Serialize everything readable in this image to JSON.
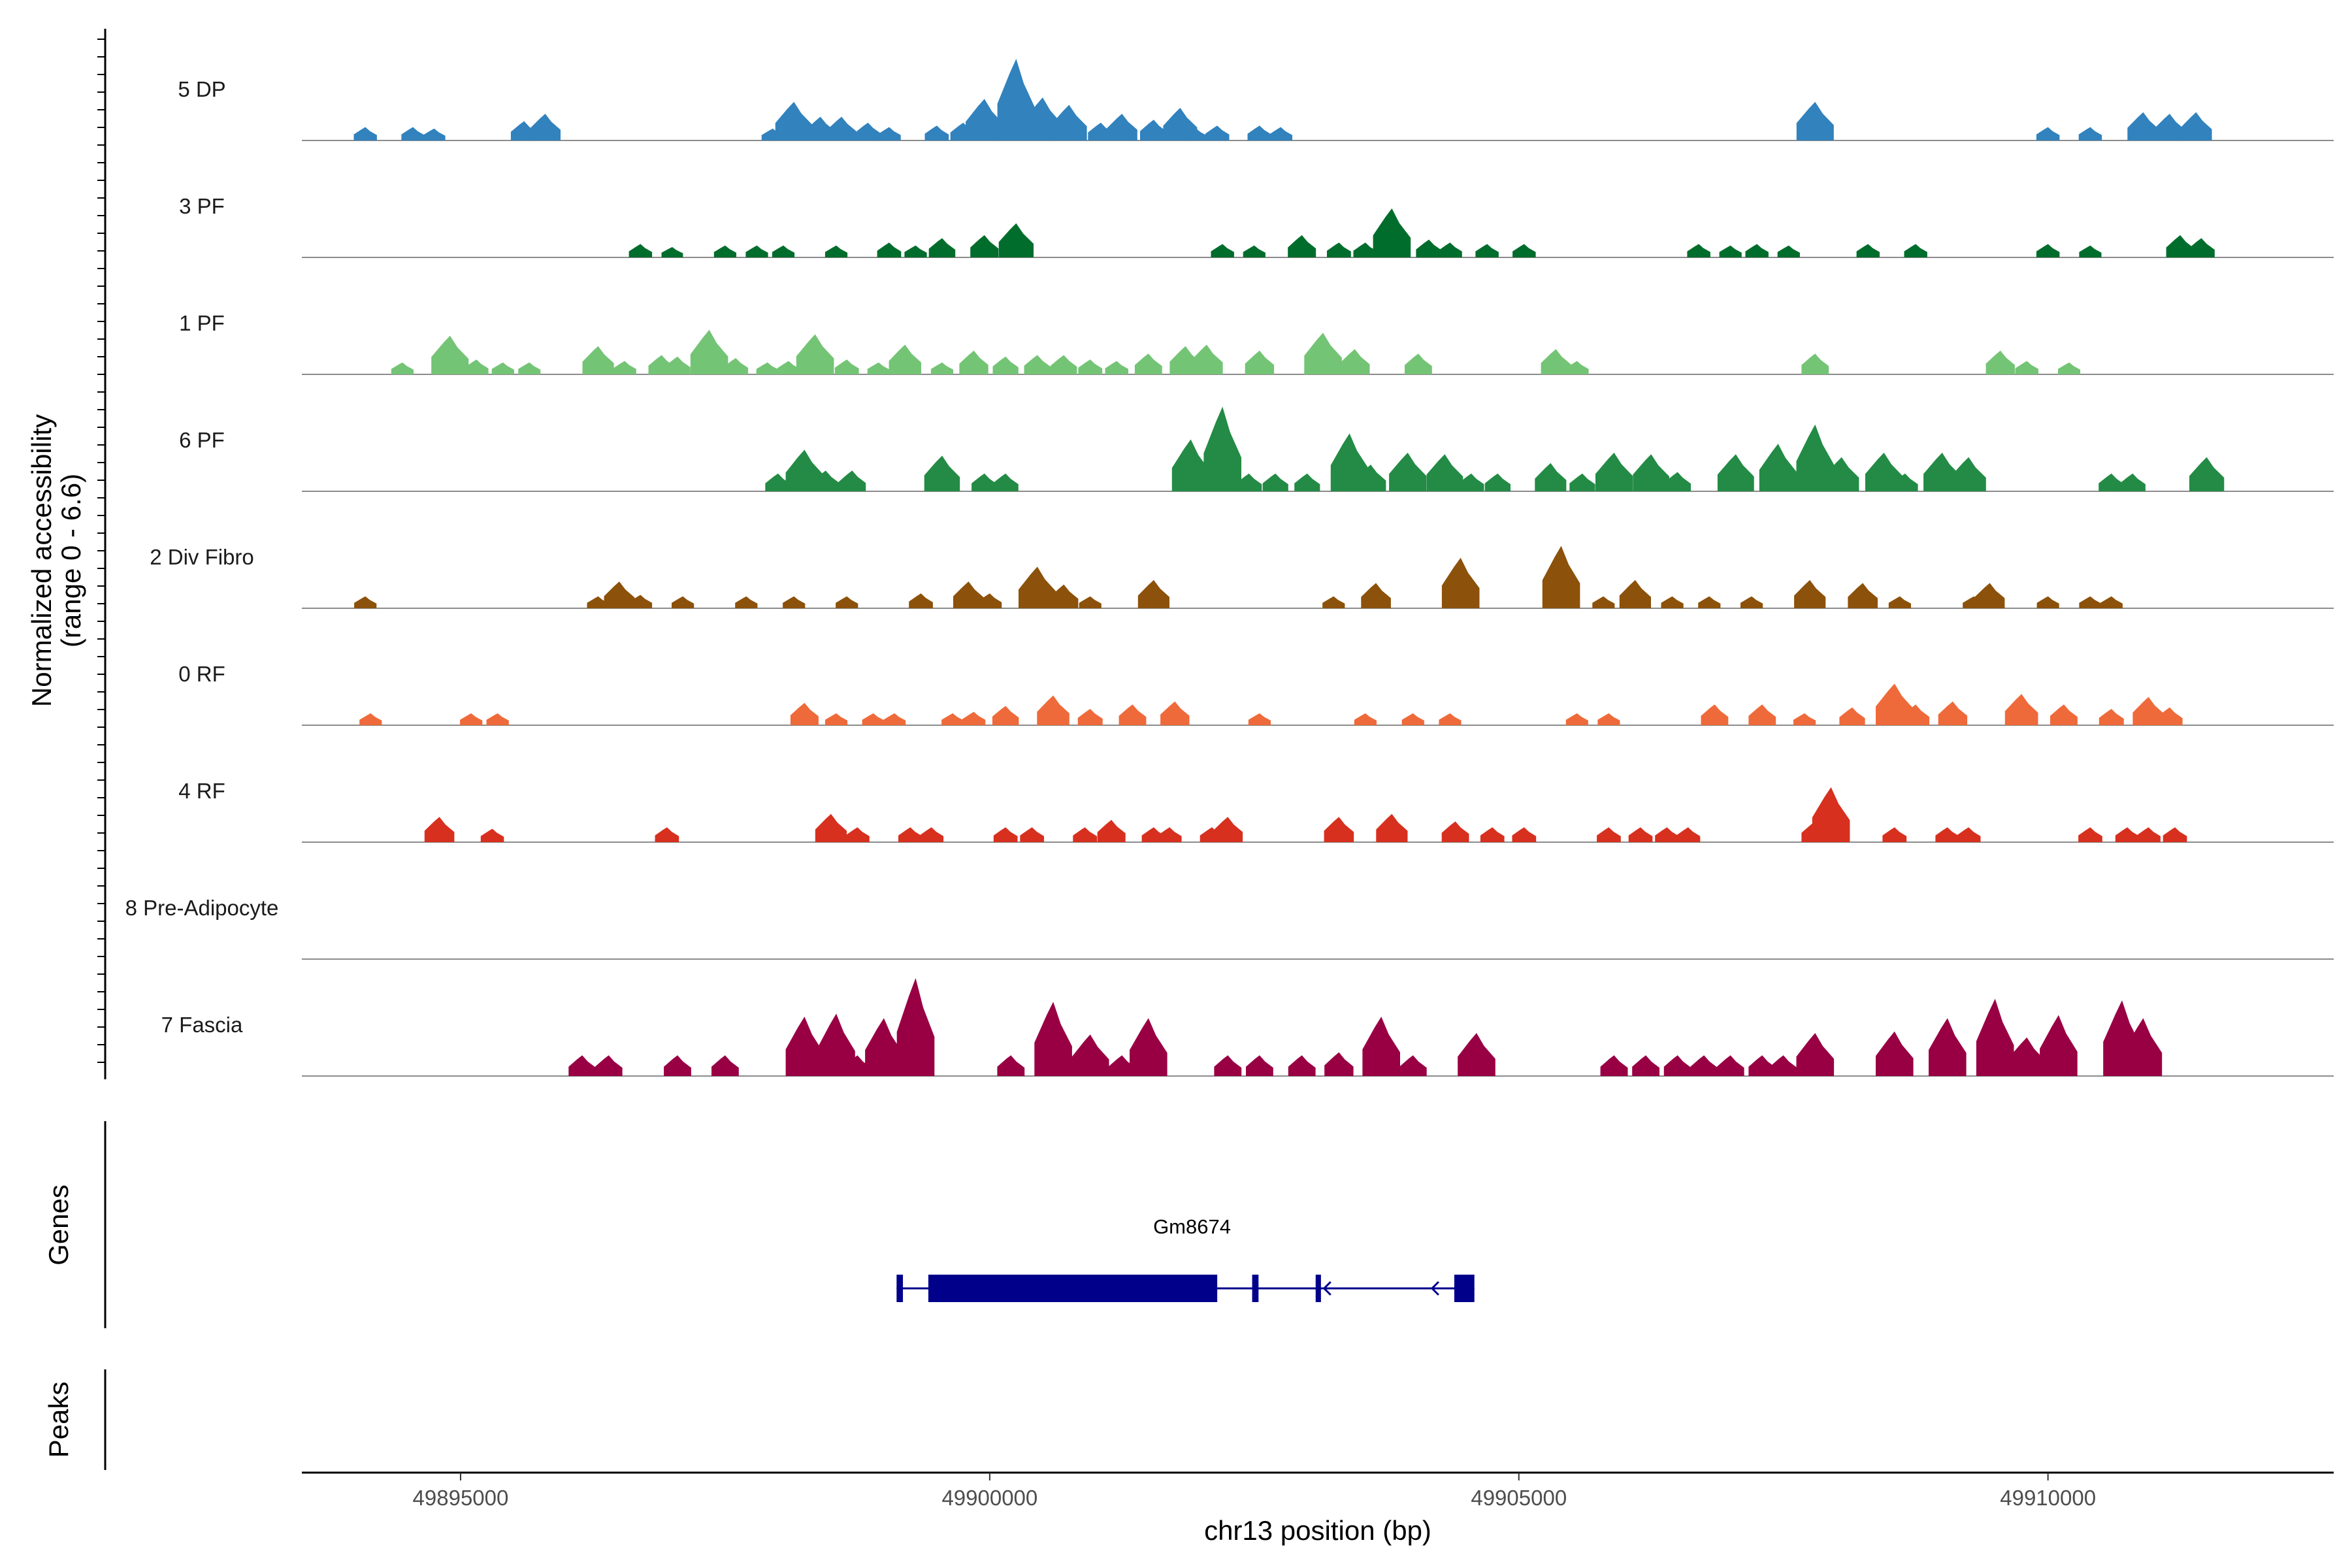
{
  "chart_data": {
    "type": "area",
    "y_axis_title_line1": "Normalized accessibility",
    "y_axis_title_line2": "(range 0 - 6.6)",
    "y_range": [
      0,
      6.6
    ],
    "x_axis_title": "chr13 position (bp)",
    "x_range": [
      49893500,
      49912700
    ],
    "x_ticks": [
      {
        "value": 49895000,
        "label": "49895000"
      },
      {
        "value": 49900000,
        "label": "49900000"
      },
      {
        "value": 49905000,
        "label": "49905000"
      },
      {
        "value": 49910000,
        "label": "49910000"
      }
    ],
    "genes_panel_title": "Genes",
    "peaks_panel_title": "Peaks",
    "genes": [
      {
        "name": "Gm8674",
        "strand": "-",
        "start": 49899120,
        "end": 49904580,
        "color": "#00008b",
        "exons": [
          [
            49899120,
            49899180
          ],
          [
            49899420,
            49902150
          ],
          [
            49902480,
            49902540
          ],
          [
            49903080,
            49903130
          ],
          [
            49904390,
            49904580
          ]
        ]
      }
    ],
    "peaks": [],
    "tracks": [
      {
        "name": "5 DP",
        "color": "#3182bd",
        "peaks": [
          [
            49894100,
            0.9
          ],
          [
            49894550,
            0.9
          ],
          [
            49894750,
            0.8
          ],
          [
            49895600,
            1.3
          ],
          [
            49895800,
            1.8
          ],
          [
            49897950,
            0.8
          ],
          [
            49898150,
            2.6
          ],
          [
            49898400,
            1.6
          ],
          [
            49898600,
            1.6
          ],
          [
            49898850,
            1.2
          ],
          [
            49899050,
            0.9
          ],
          [
            49899500,
            1.0
          ],
          [
            49899750,
            1.2
          ],
          [
            49899950,
            2.8
          ],
          [
            49900250,
            5.5
          ],
          [
            49900500,
            2.9
          ],
          [
            49900750,
            2.4
          ],
          [
            49901050,
            1.2
          ],
          [
            49901250,
            1.8
          ],
          [
            49901550,
            1.4
          ],
          [
            49901800,
            2.2
          ],
          [
            49901950,
            0.8
          ],
          [
            49902150,
            1.0
          ],
          [
            49902550,
            1.0
          ],
          [
            49902750,
            0.9
          ],
          [
            49907800,
            2.6
          ],
          [
            49910000,
            0.9
          ],
          [
            49910400,
            0.9
          ],
          [
            49910900,
            1.9
          ],
          [
            49911150,
            1.8
          ],
          [
            49911400,
            1.9
          ]
        ]
      },
      {
        "name": "3 PF",
        "color": "#006d2c",
        "peaks": [
          [
            49896700,
            0.9
          ],
          [
            49897000,
            0.7
          ],
          [
            49897500,
            0.8
          ],
          [
            49897800,
            0.8
          ],
          [
            49898050,
            0.8
          ],
          [
            49898550,
            0.8
          ],
          [
            49899050,
            1.0
          ],
          [
            49899300,
            0.8
          ],
          [
            49899550,
            1.3
          ],
          [
            49899950,
            1.5
          ],
          [
            49900250,
            2.3
          ],
          [
            49902200,
            0.9
          ],
          [
            49902500,
            0.8
          ],
          [
            49902950,
            1.5
          ],
          [
            49903300,
            1.0
          ],
          [
            49903550,
            1.0
          ],
          [
            49903800,
            3.3
          ],
          [
            49904150,
            1.2
          ],
          [
            49904350,
            1.0
          ],
          [
            49904700,
            0.9
          ],
          [
            49905050,
            0.9
          ],
          [
            49906700,
            0.9
          ],
          [
            49907000,
            0.8
          ],
          [
            49907250,
            0.9
          ],
          [
            49907550,
            0.8
          ],
          [
            49908300,
            0.9
          ],
          [
            49908750,
            0.9
          ],
          [
            49910000,
            0.9
          ],
          [
            49910400,
            0.8
          ],
          [
            49911250,
            1.5
          ],
          [
            49911450,
            1.3
          ]
        ]
      },
      {
        "name": "1 PF",
        "color": "#74c476",
        "peaks": [
          [
            49894450,
            0.8
          ],
          [
            49894900,
            2.6
          ],
          [
            49895150,
            1.0
          ],
          [
            49895400,
            0.8
          ],
          [
            49895650,
            0.8
          ],
          [
            49896300,
            1.9
          ],
          [
            49896550,
            0.9
          ],
          [
            49896900,
            1.3
          ],
          [
            49897050,
            1.2
          ],
          [
            49897350,
            3.0
          ],
          [
            49897600,
            1.1
          ],
          [
            49897900,
            0.8
          ],
          [
            49898100,
            0.9
          ],
          [
            49898350,
            2.7
          ],
          [
            49898650,
            1.0
          ],
          [
            49898950,
            0.8
          ],
          [
            49899200,
            2.0
          ],
          [
            49899550,
            0.8
          ],
          [
            49899850,
            1.6
          ],
          [
            49900150,
            1.2
          ],
          [
            49900450,
            1.3
          ],
          [
            49900700,
            1.3
          ],
          [
            49900950,
            1.0
          ],
          [
            49901200,
            0.9
          ],
          [
            49901500,
            1.4
          ],
          [
            49901850,
            1.9
          ],
          [
            49902050,
            2.0
          ],
          [
            49902550,
            1.6
          ],
          [
            49903150,
            2.8
          ],
          [
            49903450,
            1.7
          ],
          [
            49904050,
            1.4
          ],
          [
            49905350,
            1.7
          ],
          [
            49905550,
            0.9
          ],
          [
            49907800,
            1.4
          ],
          [
            49909550,
            1.6
          ],
          [
            49909800,
            0.9
          ],
          [
            49910200,
            0.8
          ]
        ]
      },
      {
        "name": "6 PF",
        "color": "#238b45",
        "peaks": [
          [
            49898000,
            1.2
          ],
          [
            49898250,
            2.8
          ],
          [
            49898450,
            1.4
          ],
          [
            49898700,
            1.4
          ],
          [
            49899550,
            2.4
          ],
          [
            49899950,
            1.2
          ],
          [
            49900150,
            1.2
          ],
          [
            49901900,
            3.5
          ],
          [
            49902200,
            5.7
          ],
          [
            49902450,
            1.2
          ],
          [
            49902700,
            1.2
          ],
          [
            49903000,
            1.2
          ],
          [
            49903400,
            3.9
          ],
          [
            49903600,
            1.8
          ],
          [
            49903950,
            2.6
          ],
          [
            49904300,
            2.5
          ],
          [
            49904550,
            1.2
          ],
          [
            49904800,
            1.2
          ],
          [
            49905300,
            1.9
          ],
          [
            49905600,
            1.2
          ],
          [
            49905900,
            2.6
          ],
          [
            49906250,
            2.5
          ],
          [
            49906500,
            1.3
          ],
          [
            49907050,
            2.5
          ],
          [
            49907450,
            3.2
          ],
          [
            49907800,
            4.5
          ],
          [
            49908050,
            2.3
          ],
          [
            49908450,
            2.6
          ],
          [
            49908650,
            1.2
          ],
          [
            49909000,
            2.6
          ],
          [
            49909250,
            2.3
          ],
          [
            49910600,
            1.2
          ],
          [
            49910800,
            1.2
          ],
          [
            49911500,
            2.3
          ]
        ]
      },
      {
        "name": "2 Div Fibro",
        "color": "#8c510a",
        "peaks": [
          [
            49894100,
            0.8
          ],
          [
            49896300,
            0.8
          ],
          [
            49896500,
            1.8
          ],
          [
            49896700,
            0.9
          ],
          [
            49897100,
            0.8
          ],
          [
            49897700,
            0.8
          ],
          [
            49898150,
            0.8
          ],
          [
            49898650,
            0.8
          ],
          [
            49899350,
            1.0
          ],
          [
            49899800,
            1.8
          ],
          [
            49900000,
            1.0
          ],
          [
            49900450,
            2.8
          ],
          [
            49900700,
            1.6
          ],
          [
            49900950,
            0.8
          ],
          [
            49901550,
            1.9
          ],
          [
            49903250,
            0.8
          ],
          [
            49903650,
            1.7
          ],
          [
            49904450,
            3.4
          ],
          [
            49905400,
            4.2
          ],
          [
            49905800,
            0.8
          ],
          [
            49906100,
            1.9
          ],
          [
            49906450,
            0.8
          ],
          [
            49906800,
            0.8
          ],
          [
            49907200,
            0.8
          ],
          [
            49907750,
            1.9
          ],
          [
            49908250,
            1.7
          ],
          [
            49908600,
            0.8
          ],
          [
            49909300,
            0.8
          ],
          [
            49909450,
            1.7
          ],
          [
            49910000,
            0.8
          ],
          [
            49910400,
            0.8
          ],
          [
            49910600,
            0.8
          ]
        ]
      },
      {
        "name": "0 RF",
        "color": "#ef6a3a",
        "peaks": [
          [
            49894150,
            0.8
          ],
          [
            49895100,
            0.8
          ],
          [
            49895350,
            0.8
          ],
          [
            49898250,
            1.5
          ],
          [
            49898550,
            0.8
          ],
          [
            49898900,
            0.8
          ],
          [
            49899100,
            0.8
          ],
          [
            49899650,
            0.8
          ],
          [
            49899850,
            0.9
          ],
          [
            49900150,
            1.3
          ],
          [
            49900600,
            2.0
          ],
          [
            49900950,
            1.1
          ],
          [
            49901350,
            1.4
          ],
          [
            49901750,
            1.6
          ],
          [
            49902550,
            0.8
          ],
          [
            49903550,
            0.8
          ],
          [
            49904000,
            0.8
          ],
          [
            49904350,
            0.8
          ],
          [
            49905550,
            0.8
          ],
          [
            49905850,
            0.8
          ],
          [
            49906850,
            1.4
          ],
          [
            49907300,
            1.4
          ],
          [
            49907700,
            0.8
          ],
          [
            49908150,
            1.2
          ],
          [
            49908550,
            2.8
          ],
          [
            49908750,
            1.4
          ],
          [
            49909100,
            1.6
          ],
          [
            49909750,
            2.1
          ],
          [
            49910150,
            1.4
          ],
          [
            49910600,
            1.1
          ],
          [
            49910950,
            1.9
          ],
          [
            49911150,
            1.2
          ]
        ]
      },
      {
        "name": "4 RF",
        "color": "#d7301f",
        "peaks": [
          [
            49894800,
            1.7
          ],
          [
            49895300,
            0.9
          ],
          [
            49896950,
            1.0
          ],
          [
            49898500,
            1.9
          ],
          [
            49898750,
            1.0
          ],
          [
            49899250,
            1.0
          ],
          [
            49899450,
            1.0
          ],
          [
            49900150,
            1.0
          ],
          [
            49900400,
            1.0
          ],
          [
            49900900,
            1.0
          ],
          [
            49901150,
            1.5
          ],
          [
            49901550,
            1.0
          ],
          [
            49901700,
            1.0
          ],
          [
            49902100,
            1.0
          ],
          [
            49902250,
            1.7
          ],
          [
            49903300,
            1.7
          ],
          [
            49903800,
            1.9
          ],
          [
            49904400,
            1.4
          ],
          [
            49904750,
            1.0
          ],
          [
            49905050,
            1.0
          ],
          [
            49905850,
            1.0
          ],
          [
            49906150,
            1.0
          ],
          [
            49906400,
            1.0
          ],
          [
            49906600,
            1.0
          ],
          [
            49907800,
            1.4
          ],
          [
            49907950,
            3.7
          ],
          [
            49908550,
            1.0
          ],
          [
            49909050,
            1.0
          ],
          [
            49909250,
            1.0
          ],
          [
            49910400,
            1.0
          ],
          [
            49910750,
            1.0
          ],
          [
            49910950,
            1.0
          ],
          [
            49911200,
            1.0
          ]
        ]
      },
      {
        "name": "8 Pre-Adipocyte",
        "color": "#d95f0e",
        "peaks": []
      },
      {
        "name": "7 Fascia",
        "color": "#980043",
        "peaks": [
          [
            49896150,
            1.4
          ],
          [
            49896400,
            1.4
          ],
          [
            49897050,
            1.4
          ],
          [
            49897500,
            1.4
          ],
          [
            49898250,
            4.0
          ],
          [
            49898550,
            4.2
          ],
          [
            49898750,
            1.4
          ],
          [
            49899000,
            3.9
          ],
          [
            49899300,
            6.6
          ],
          [
            49900200,
            1.4
          ],
          [
            49900600,
            5.0
          ],
          [
            49900950,
            2.8
          ],
          [
            49901250,
            1.4
          ],
          [
            49901500,
            3.9
          ],
          [
            49902250,
            1.4
          ],
          [
            49902550,
            1.4
          ],
          [
            49902950,
            1.4
          ],
          [
            49903300,
            1.6
          ],
          [
            49903700,
            4.0
          ],
          [
            49904000,
            1.4
          ],
          [
            49904600,
            2.9
          ],
          [
            49905900,
            1.4
          ],
          [
            49906200,
            1.4
          ],
          [
            49906500,
            1.4
          ],
          [
            49906750,
            1.4
          ],
          [
            49907000,
            1.4
          ],
          [
            49907300,
            1.4
          ],
          [
            49907500,
            1.4
          ],
          [
            49907800,
            2.9
          ],
          [
            49908550,
            3.0
          ],
          [
            49909050,
            3.9
          ],
          [
            49909500,
            5.2
          ],
          [
            49909800,
            2.6
          ],
          [
            49910100,
            4.1
          ],
          [
            49910700,
            5.1
          ],
          [
            49910900,
            3.9
          ]
        ]
      }
    ]
  }
}
